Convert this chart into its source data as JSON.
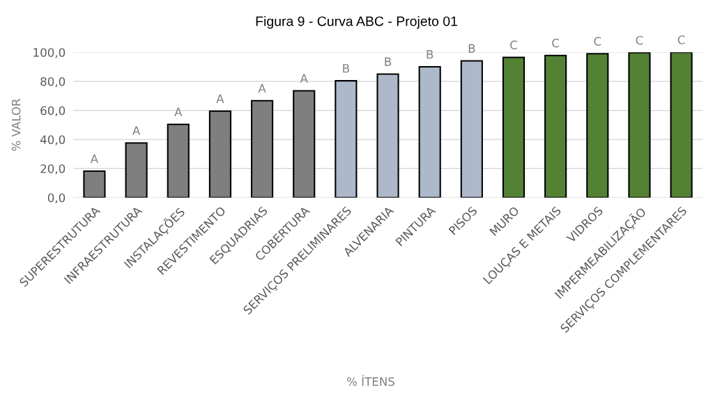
{
  "chart_data": {
    "type": "bar",
    "title": "Figura 9 - Curva ABC - Projeto 01",
    "xlabel": "% ÍTENS",
    "ylabel": "% VALOR",
    "categories": [
      "SUPERESTRUTURA",
      "INFRAESTRUTURA",
      "INSTALAÇÕES",
      "REVESTIMENTO",
      "ESQUADRIAS",
      "COBERTURA",
      "SERVIÇOS PRELIMINARES",
      "ALVENARIA",
      "PINTURA",
      "PISOS",
      "MURO",
      "LOUÇAS E METAIS",
      "VIDROS",
      "IMPERMEABILIZAÇÃO",
      "SERVIÇOS COMPLEMENTARES"
    ],
    "values": [
      18.2,
      37.6,
      50.4,
      59.5,
      66.7,
      73.5,
      80.4,
      85.0,
      90.0,
      94.1,
      96.5,
      97.8,
      99.0,
      99.7,
      100.0
    ],
    "colors": [
      "#7f7f7f",
      "#7f7f7f",
      "#7f7f7f",
      "#7f7f7f",
      "#7f7f7f",
      "#7f7f7f",
      "#adb9ca",
      "#adb9ca",
      "#adb9ca",
      "#adb9ca",
      "#548235",
      "#548235",
      "#548235",
      "#548235",
      "#548235"
    ],
    "value_labels": [
      "A",
      "A",
      "A",
      "A",
      "A",
      "A",
      "B",
      "B",
      "B",
      "B",
      "C",
      "C",
      "C",
      "C",
      "C"
    ],
    "ylim": [
      0,
      100
    ],
    "yticks": [
      {
        "value": 0,
        "label": "0,0"
      },
      {
        "value": 20,
        "label": "20,0"
      },
      {
        "value": 40,
        "label": "40,0"
      },
      {
        "value": 60,
        "label": "60,0"
      },
      {
        "value": 80,
        "label": "80,0"
      },
      {
        "value": 100,
        "label": "100,0"
      }
    ],
    "grid": "y",
    "legend": false
  }
}
